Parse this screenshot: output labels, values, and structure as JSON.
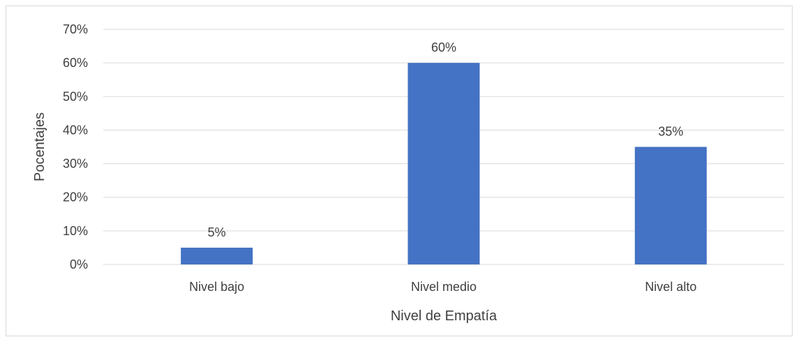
{
  "chart_data": {
    "type": "bar",
    "categories": [
      "Nivel bajo",
      "Nivel medio",
      "Nivel alto"
    ],
    "values": [
      5,
      60,
      35
    ],
    "data_labels": [
      "5%",
      "60%",
      "35%"
    ],
    "title": "",
    "xlabel": "Nivel de Empatía",
    "ylabel": "Pocentajes",
    "ylim": [
      0,
      70
    ],
    "y_ticks": [
      0,
      10,
      20,
      30,
      40,
      50,
      60,
      70
    ],
    "y_tick_labels": [
      "0%",
      "10%",
      "20%",
      "30%",
      "40%",
      "50%",
      "60%",
      "70%"
    ],
    "grid": true,
    "legend": "none",
    "colors": {
      "bar": "#4472c4",
      "grid": "#d9d9d9",
      "text": "#404040"
    }
  }
}
